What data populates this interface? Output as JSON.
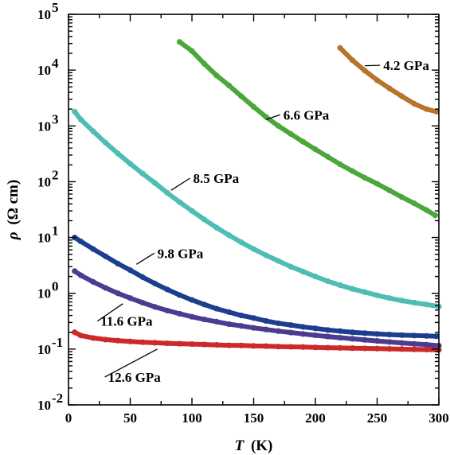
{
  "chart_data": {
    "type": "line",
    "title": "",
    "xlabel": {
      "symbol": "T",
      "unit": "(K)"
    },
    "ylabel": {
      "symbol": "ρ",
      "unit": "(Ω cm)"
    },
    "xlim": [
      0,
      300
    ],
    "ylim": [
      0.01,
      100000
    ],
    "yscale": "log",
    "grid": false,
    "x_ticks": [
      0,
      50,
      100,
      150,
      200,
      250,
      300
    ],
    "x_tick_labels": [
      "0",
      "50",
      "100",
      "150",
      "200",
      "250",
      "300"
    ],
    "y_ticks": [
      {
        "value": 0.01,
        "mantissa": "10",
        "exp": "-2"
      },
      {
        "value": 0.1,
        "mantissa": "10",
        "exp": "-1"
      },
      {
        "value": 1,
        "mantissa": "10",
        "exp": "0"
      },
      {
        "value": 10,
        "mantissa": "10",
        "exp": "1"
      },
      {
        "value": 100,
        "mantissa": "10",
        "exp": "2"
      },
      {
        "value": 1000,
        "mantissa": "10",
        "exp": "3"
      },
      {
        "value": 10000,
        "mantissa": "10",
        "exp": "4"
      },
      {
        "value": 100000,
        "mantissa": "10",
        "exp": "5"
      }
    ],
    "series": [
      {
        "name": "4.2 GPa",
        "color": "#b8732e",
        "label_at": {
          "x": 255,
          "y": 10000
        },
        "leader_to": {
          "x": 240,
          "y": 12000
        },
        "x": [
          220,
          230,
          240,
          250,
          260,
          270,
          280,
          290,
          298
        ],
        "y": [
          25000,
          15000,
          9800,
          6600,
          4700,
          3400,
          2500,
          2000,
          1800
        ]
      },
      {
        "name": "6.6 GPa",
        "color": "#4aa83a",
        "label_at": {
          "x": 174,
          "y": 1300
        },
        "leader_to": {
          "x": 160,
          "y": 1300
        },
        "x": [
          90,
          100,
          110,
          120,
          130,
          140,
          150,
          160,
          170,
          180,
          190,
          200,
          210,
          220,
          230,
          240,
          250,
          260,
          270,
          280,
          290,
          297
        ],
        "y": [
          32000,
          22000,
          13000,
          8000,
          5300,
          3400,
          2200,
          1450,
          1000,
          720,
          520,
          380,
          280,
          205,
          155,
          118,
          92,
          70,
          53,
          41,
          31,
          25
        ]
      },
      {
        "name": "8.5 GPa",
        "color": "#4ebdb4",
        "label_at": {
          "x": 101,
          "y": 95
        },
        "leader_to": {
          "x": 83,
          "y": 70
        },
        "x": [
          5,
          10,
          20,
          30,
          40,
          50,
          60,
          70,
          80,
          90,
          100,
          110,
          120,
          130,
          140,
          150,
          160,
          170,
          180,
          190,
          200,
          210,
          220,
          230,
          240,
          250,
          260,
          270,
          280,
          290,
          300
        ],
        "y": [
          1800,
          1300,
          800,
          500,
          320,
          210,
          140,
          95,
          63,
          43,
          30,
          21,
          15,
          11,
          8.2,
          6.2,
          4.8,
          3.8,
          3.0,
          2.45,
          2.0,
          1.65,
          1.4,
          1.2,
          1.05,
          0.92,
          0.82,
          0.74,
          0.68,
          0.63,
          0.58
        ]
      },
      {
        "name": "9.8 GPa",
        "color": "#1d3d8f",
        "label_at": {
          "x": 72,
          "y": 4.3
        },
        "leader_to": {
          "x": 55,
          "y": 3.3
        },
        "x": [
          5,
          10,
          20,
          30,
          40,
          50,
          60,
          70,
          80,
          90,
          100,
          110,
          120,
          130,
          140,
          150,
          160,
          170,
          180,
          190,
          200,
          210,
          220,
          230,
          240,
          250,
          260,
          270,
          280,
          290,
          298
        ],
        "y": [
          10,
          8.5,
          6.2,
          4.6,
          3.4,
          2.6,
          1.95,
          1.5,
          1.17,
          0.93,
          0.76,
          0.63,
          0.53,
          0.46,
          0.4,
          0.36,
          0.32,
          0.29,
          0.27,
          0.25,
          0.235,
          0.22,
          0.21,
          0.2,
          0.193,
          0.187,
          0.182,
          0.178,
          0.175,
          0.172,
          0.17
        ]
      },
      {
        "name": "11.6 GPa",
        "color": "#4b3b91",
        "label_at": {
          "x": 26,
          "y": 0.26
        },
        "leader_to": {
          "x": 44,
          "y": 0.65
        },
        "x": [
          5,
          10,
          20,
          30,
          40,
          50,
          60,
          70,
          80,
          90,
          100,
          110,
          120,
          130,
          140,
          150,
          160,
          170,
          180,
          190,
          200,
          210,
          220,
          230,
          240,
          250,
          260,
          270,
          280,
          290,
          300
        ],
        "y": [
          2.5,
          2.1,
          1.6,
          1.25,
          1.0,
          0.82,
          0.68,
          0.57,
          0.49,
          0.43,
          0.38,
          0.34,
          0.31,
          0.28,
          0.26,
          0.24,
          0.225,
          0.21,
          0.198,
          0.187,
          0.177,
          0.168,
          0.16,
          0.153,
          0.146,
          0.14,
          0.134,
          0.129,
          0.124,
          0.12,
          0.115
        ]
      },
      {
        "name": "12.6 GPa",
        "color": "#cc2929",
        "label_at": {
          "x": 32,
          "y": 0.026
        },
        "leader_to": {
          "x": 72,
          "y": 0.1
        },
        "x": [
          5,
          10,
          20,
          30,
          40,
          50,
          60,
          70,
          80,
          90,
          100,
          110,
          120,
          130,
          140,
          150,
          160,
          170,
          180,
          190,
          200,
          210,
          220,
          230,
          240,
          250,
          260,
          270,
          280,
          290,
          300
        ],
        "y": [
          0.2,
          0.175,
          0.158,
          0.148,
          0.142,
          0.137,
          0.133,
          0.13,
          0.127,
          0.125,
          0.123,
          0.121,
          0.119,
          0.117,
          0.116,
          0.114,
          0.113,
          0.111,
          0.11,
          0.109,
          0.107,
          0.106,
          0.105,
          0.104,
          0.103,
          0.102,
          0.101,
          0.1,
          0.099,
          0.098,
          0.097
        ]
      }
    ]
  }
}
